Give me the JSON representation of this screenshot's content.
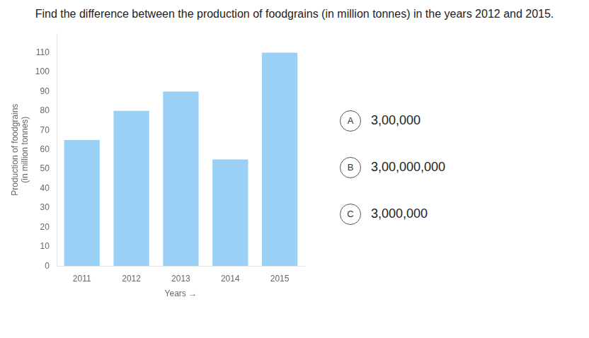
{
  "chart_data": {
    "type": "bar",
    "title": "Find the difference between the production of foodgrains (in million tonnes) in the years 2012 and 2015.",
    "categories": [
      "2011",
      "2012",
      "2013",
      "2014",
      "2015"
    ],
    "values": [
      65,
      80,
      90,
      55,
      110
    ],
    "xlabel": "Years →",
    "ylabel": "Production of foodgrains\n(in million tonnes)",
    "ylim": [
      0,
      120
    ],
    "yticks": [
      0,
      10,
      20,
      30,
      40,
      50,
      60,
      70,
      80,
      90,
      100,
      110
    ],
    "grid": false,
    "annotations": [
      {
        "label": "A",
        "text": "3,00,000"
      },
      {
        "label": "B",
        "text": "3,00,000,000"
      },
      {
        "label": "C",
        "text": "3,000,000"
      }
    ]
  }
}
